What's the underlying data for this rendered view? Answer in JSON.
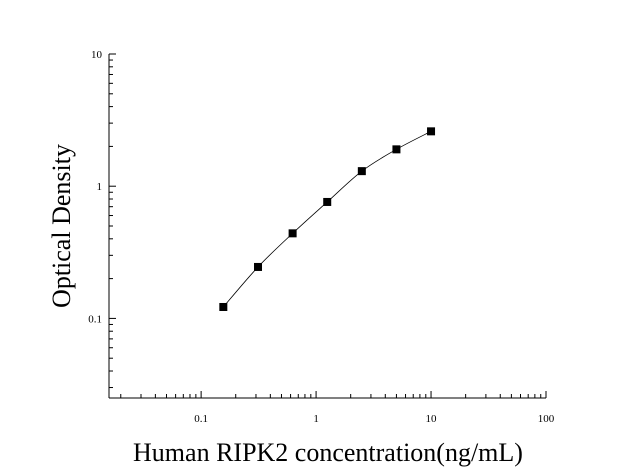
{
  "chart_data": {
    "type": "scatter",
    "title": "",
    "xlabel": "Human RIPK2 concentration(ng/mL)",
    "ylabel": "Optical Density",
    "x_scale": "log",
    "y_scale": "log",
    "xlim": [
      0.0158,
      100
    ],
    "ylim": [
      0.025,
      10
    ],
    "x_ticks": [
      "0.1",
      "1",
      "10",
      "100"
    ],
    "y_ticks": [
      "0.1",
      "1",
      "10"
    ],
    "grid": false,
    "legend": "none",
    "series": [
      {
        "marker": "square",
        "fit_line": true,
        "color": "#000000",
        "x": [
          0.156,
          0.3125,
          0.625,
          1.25,
          2.5,
          5,
          10
        ],
        "y": [
          0.122,
          0.245,
          0.44,
          0.76,
          1.3,
          1.9,
          2.6
        ]
      }
    ]
  }
}
